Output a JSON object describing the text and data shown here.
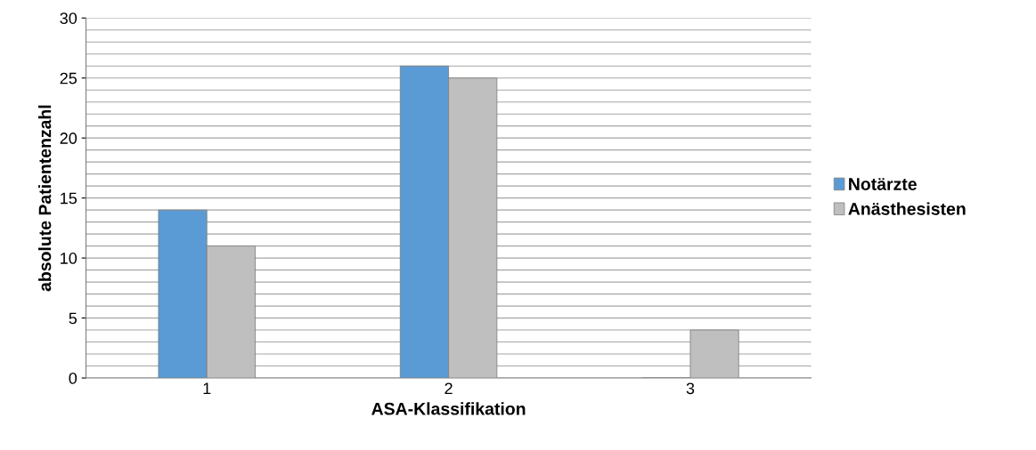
{
  "chart_data": {
    "type": "bar",
    "xlabel": "ASA-Klassifikation",
    "ylabel": "absolute Patientenzahl",
    "categories": [
      "1",
      "2",
      "3"
    ],
    "series": [
      {
        "name": "Notärzte",
        "color": "#5b9bd5",
        "values": [
          14,
          26,
          0
        ]
      },
      {
        "name": "Anästhesisten",
        "color": "#bfbfbf",
        "values": [
          11,
          25,
          4
        ]
      }
    ],
    "ylim": [
      0,
      30
    ],
    "yticks": [
      0,
      5,
      10,
      15,
      20,
      25,
      30
    ],
    "grid": "y",
    "legend": "right"
  }
}
